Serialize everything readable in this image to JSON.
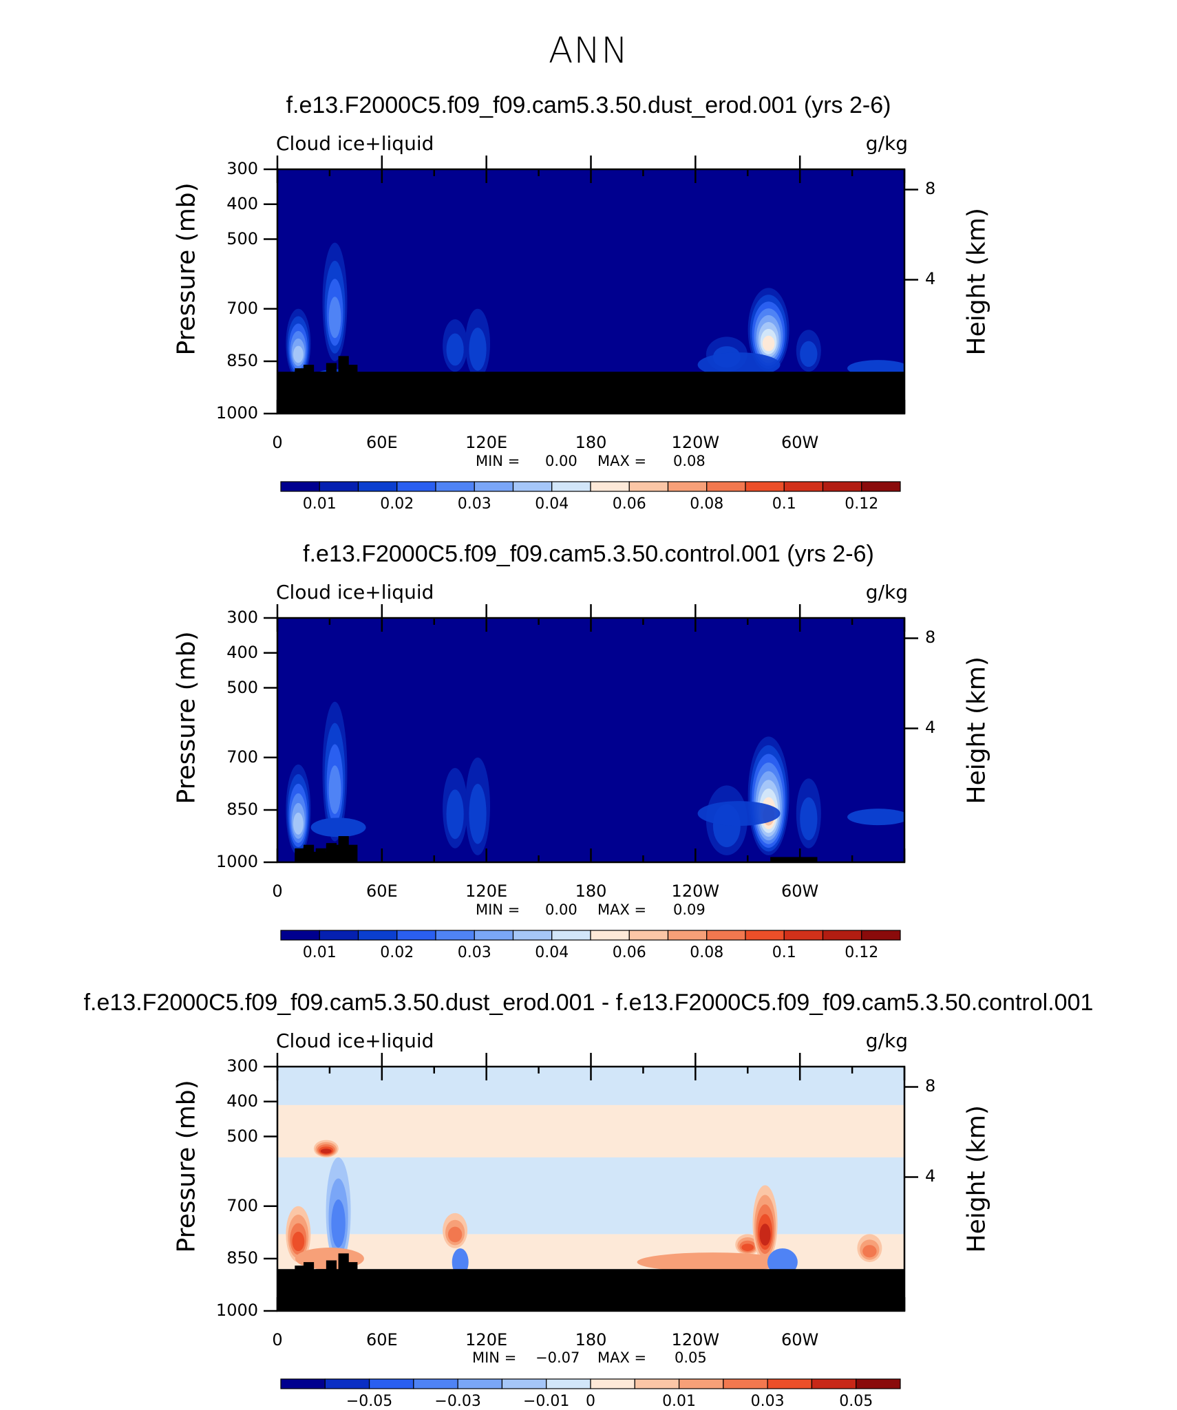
{
  "title": "ANN",
  "colors": {
    "seq": [
      "#00008f",
      "#0520b0",
      "#0b3fcf",
      "#2a5ff0",
      "#4f83f5",
      "#7aa6f7",
      "#a5c6f8",
      "#d2e6f9",
      "#fde9d8",
      "#fbc6a6",
      "#f7a078",
      "#f2784f",
      "#ec4f29",
      "#d2311a",
      "#b21d12",
      "#8a0b0b"
    ],
    "div": [
      "#00008f",
      "#0b2fc4",
      "#2a5ff0",
      "#4f83f5",
      "#7aa6f7",
      "#a5c6f8",
      "#d2e6f9",
      "#fde9d8",
      "#fbc6a6",
      "#f7a078",
      "#f2784f",
      "#ec4f29",
      "#c82818",
      "#8a0b0b"
    ],
    "topography": "#000000"
  },
  "panels": [
    {
      "title": "f.e13.F2000C5.f09_f09.cam5.3.50.dust_erod.001 (yrs 2-6)",
      "left_label": "Cloud ice+liquid",
      "right_label": "g/kg",
      "ylabel": "Pressure (mb)",
      "ylabel_right": "Height (km)",
      "min_label": "MIN =",
      "min_value": "0.00",
      "max_label": "MAX =",
      "max_value": "0.08",
      "colorbar_labels": [
        "0.01",
        "0.02",
        "0.03",
        "0.04",
        "0.06",
        "0.08",
        "0.1",
        "0.12"
      ]
    },
    {
      "title": "f.e13.F2000C5.f09_f09.cam5.3.50.control.001 (yrs 2-6)",
      "left_label": "Cloud ice+liquid",
      "right_label": "g/kg",
      "ylabel": "Pressure (mb)",
      "ylabel_right": "Height (km)",
      "min_label": "MIN =",
      "min_value": "0.00",
      "max_label": "MAX =",
      "max_value": "0.09",
      "colorbar_labels": [
        "0.01",
        "0.02",
        "0.03",
        "0.04",
        "0.06",
        "0.08",
        "0.1",
        "0.12"
      ]
    },
    {
      "title": "f.e13.F2000C5.f09_f09.cam5.3.50.dust_erod.001 - f.e13.F2000C5.f09_f09.cam5.3.50.control.001",
      "left_label": "Cloud ice+liquid",
      "right_label": "g/kg",
      "ylabel": "Pressure (mb)",
      "ylabel_right": "Height (km)",
      "min_label": "MIN =",
      "min_value": "−0.07",
      "max_label": "MAX =",
      "max_value": "0.05",
      "colorbar_labels": [
        "−0.05",
        "−0.03",
        "−0.01",
        "0",
        "0.01",
        "0.03",
        "0.05"
      ]
    }
  ],
  "chart_data": [
    {
      "type": "heatmap",
      "title": "f.e13.F2000C5.f09_f09.cam5.3.50.dust_erod.001 (yrs 2-6)",
      "subtitle": "Cloud ice+liquid",
      "units": "g/kg",
      "xlabel": "",
      "ylabel": "Pressure (mb)",
      "ylabel_right": "Height (km)",
      "x_ticks": [
        "0",
        "60E",
        "120E",
        "180",
        "120W",
        "60W"
      ],
      "x_tick_values": [
        0,
        60,
        120,
        180,
        240,
        300
      ],
      "xlim": [
        0,
        360
      ],
      "y_ticks": [
        300,
        400,
        500,
        700,
        850,
        1000
      ],
      "ylim": [
        1000,
        300
      ],
      "y_right_ticks": [
        4,
        8
      ],
      "min": 0.0,
      "max": 0.08,
      "colorbar": [
        0.01,
        0.02,
        0.03,
        0.04,
        0.06,
        0.08,
        0.1,
        0.12
      ],
      "features": [
        {
          "lon": 12,
          "p_bottom": 900,
          "p_top": 700,
          "peak": 0.06
        },
        {
          "lon": 33,
          "p_bottom": 850,
          "p_top": 510,
          "peak": 0.04
        },
        {
          "lon": 102,
          "p_bottom": 880,
          "p_top": 730,
          "peak": 0.02
        },
        {
          "lon": 115,
          "p_bottom": 900,
          "p_top": 700,
          "peak": 0.02
        },
        {
          "lon": 282,
          "p_bottom": 880,
          "p_top": 640,
          "peak": 0.08
        },
        {
          "lon": 258,
          "p_bottom": 880,
          "p_top": 780,
          "peak": 0.02
        },
        {
          "lon": 305,
          "p_bottom": 880,
          "p_top": 760,
          "peak": 0.02
        }
      ],
      "topography_p": 880
    },
    {
      "type": "heatmap",
      "title": "f.e13.F2000C5.f09_f09.cam5.3.50.control.001 (yrs 2-6)",
      "subtitle": "Cloud ice+liquid",
      "units": "g/kg",
      "xlabel": "",
      "ylabel": "Pressure (mb)",
      "ylabel_right": "Height (km)",
      "x_ticks": [
        "0",
        "60E",
        "120E",
        "180",
        "120W",
        "60W"
      ],
      "x_tick_values": [
        0,
        60,
        120,
        180,
        240,
        300
      ],
      "xlim": [
        0,
        360
      ],
      "y_ticks": [
        300,
        400,
        500,
        700,
        850,
        1000
      ],
      "ylim": [
        1000,
        300
      ],
      "y_right_ticks": [
        4,
        8
      ],
      "min": 0.0,
      "max": 0.09,
      "colorbar": [
        0.01,
        0.02,
        0.03,
        0.04,
        0.06,
        0.08,
        0.1,
        0.12
      ],
      "features": [
        {
          "lon": 12,
          "p_bottom": 980,
          "p_top": 720,
          "peak": 0.06
        },
        {
          "lon": 33,
          "p_bottom": 940,
          "p_top": 540,
          "peak": 0.04
        },
        {
          "lon": 102,
          "p_bottom": 960,
          "p_top": 730,
          "peak": 0.02
        },
        {
          "lon": 115,
          "p_bottom": 980,
          "p_top": 700,
          "peak": 0.02
        },
        {
          "lon": 282,
          "p_bottom": 980,
          "p_top": 640,
          "peak": 0.09
        },
        {
          "lon": 258,
          "p_bottom": 980,
          "p_top": 780,
          "peak": 0.02
        },
        {
          "lon": 305,
          "p_bottom": 960,
          "p_top": 760,
          "peak": 0.02
        }
      ],
      "topography_p": 990
    },
    {
      "type": "heatmap",
      "title": "f.e13.F2000C5.f09_f09.cam5.3.50.dust_erod.001 - f.e13.F2000C5.f09_f09.cam5.3.50.control.001",
      "subtitle": "Cloud ice+liquid",
      "units": "g/kg",
      "xlabel": "",
      "ylabel": "Pressure (mb)",
      "ylabel_right": "Height (km)",
      "x_ticks": [
        "0",
        "60E",
        "120E",
        "180",
        "120W",
        "60W"
      ],
      "x_tick_values": [
        0,
        60,
        120,
        180,
        240,
        300
      ],
      "xlim": [
        0,
        360
      ],
      "y_ticks": [
        300,
        400,
        500,
        700,
        850,
        1000
      ],
      "ylim": [
        1000,
        300
      ],
      "y_right_ticks": [
        4,
        8
      ],
      "min": -0.07,
      "max": 0.05,
      "colorbar": [
        -0.05,
        -0.03,
        -0.01,
        0,
        0.01,
        0.03,
        0.05
      ],
      "features": [
        {
          "lon": 12,
          "p_bottom": 860,
          "p_top": 700,
          "peak": 0.03
        },
        {
          "lon": 28,
          "p_bottom": 560,
          "p_top": 510,
          "peak": 0.04
        },
        {
          "lon": 35,
          "p_bottom": 870,
          "p_top": 560,
          "peak": -0.02
        },
        {
          "lon": 102,
          "p_bottom": 820,
          "p_top": 720,
          "peak": 0.02
        },
        {
          "lon": 270,
          "p_bottom": 840,
          "p_top": 780,
          "peak": 0.03
        },
        {
          "lon": 280,
          "p_bottom": 860,
          "p_top": 640,
          "peak": 0.04
        },
        {
          "lon": 340,
          "p_bottom": 860,
          "p_top": 780,
          "peak": 0.02
        }
      ],
      "topography_p": 880
    }
  ]
}
